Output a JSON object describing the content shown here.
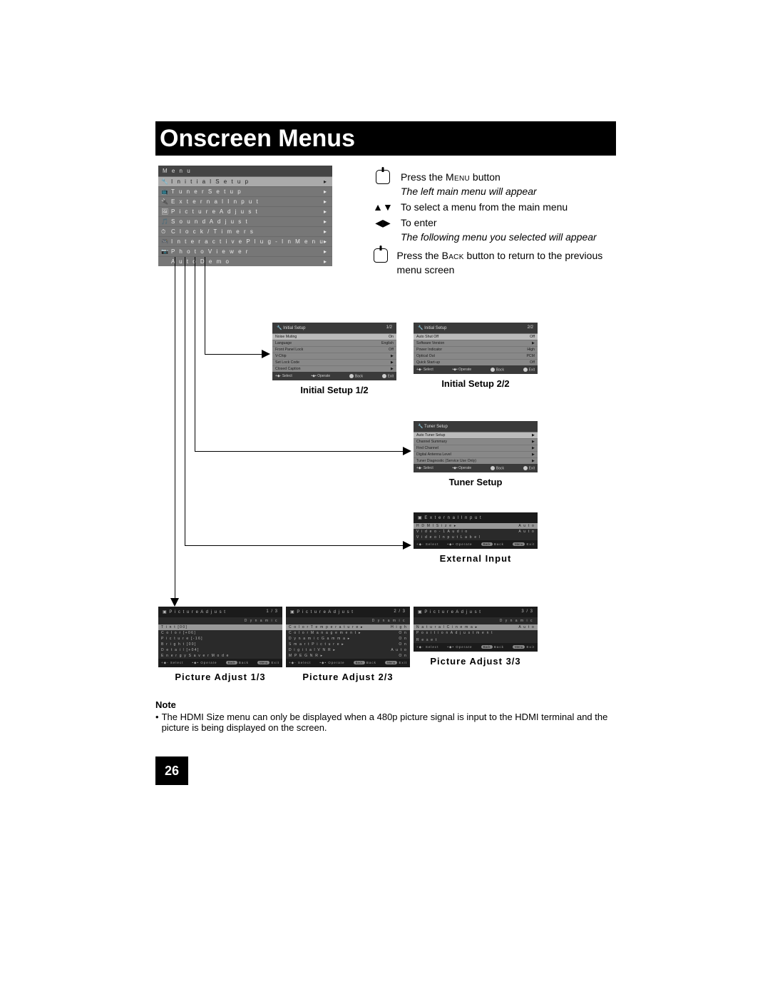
{
  "title": "Onscreen Menus",
  "page_number": "26",
  "main_menu": {
    "title": "M e n u",
    "items": [
      {
        "label": "I n i t i a l   S e t u p",
        "icon": "🔧"
      },
      {
        "label": "T u n e r   S e t u p",
        "icon": "📺"
      },
      {
        "label": "E x t e r n a l   I n p u t",
        "icon": "🔌"
      },
      {
        "label": "P i c t u r e   A d j u s t",
        "icon": "🖼"
      },
      {
        "label": "S o u n d   A d j u s t",
        "icon": "🎵"
      },
      {
        "label": "C l o c k / T i m e r s",
        "icon": "⏱"
      },
      {
        "label": "I n t e r a c t i v e   P l u g - I n   M e n u",
        "icon": "🎮"
      },
      {
        "label": "P h o t o   V i e w e r",
        "icon": "📷"
      },
      {
        "label": "A u t o   D e m o",
        "icon": ""
      }
    ]
  },
  "instructions": {
    "line1": "Press the ",
    "line1b": "Menu",
    "line1c": " button",
    "italic1": "The left main menu will appear",
    "line2": "To select a menu from the main menu",
    "line3": "To enter",
    "italic2": "The following menu you selected will appear",
    "line4a": "Press the ",
    "line4b": "Back",
    "line4c": " button to return to the previous menu screen"
  },
  "sub": {
    "is1": {
      "title": "Initial Setup",
      "page": "1/2",
      "rows": [
        {
          "l": "Noise Muting",
          "r": "On",
          "sel": true
        },
        {
          "l": "Language",
          "r": "English"
        },
        {
          "l": "Front Panel Lock",
          "r": "Off"
        },
        {
          "l": "V-Chip",
          "r": "▶"
        },
        {
          "l": "Set Lock Code",
          "r": "▶"
        },
        {
          "l": "Closed Caption",
          "r": "▶"
        }
      ],
      "caption": "Initial Setup 1/2"
    },
    "is2": {
      "title": "Initial Setup",
      "page": "2/2",
      "rows": [
        {
          "l": "Auto Shut Off",
          "r": "Off",
          "sel": true
        },
        {
          "l": "Software Version",
          "r": "▶"
        },
        {
          "l": "Power Indicator",
          "r": "High"
        },
        {
          "l": "Optical Out",
          "r": "PCM"
        },
        {
          "l": "Quick Start-up",
          "r": "Off"
        }
      ],
      "caption": "Initial Setup 2/2"
    },
    "tuner": {
      "title": "Tuner Setup",
      "page": "",
      "rows": [
        {
          "l": "Auto Tuner Setup",
          "r": "▶",
          "sel": true
        },
        {
          "l": "Channel Summary",
          "r": "▶"
        },
        {
          "l": "Find Channel",
          "r": "▶"
        },
        {
          "l": "Digital Antenna Level",
          "r": "▶"
        },
        {
          "l": "Tuner Diagnostic (Service Use Only)",
          "r": "▶"
        }
      ],
      "caption": "Tuner Setup"
    },
    "ext": {
      "title": "E x t e r n a l   I n p u t",
      "page": "",
      "rows": [
        {
          "l": "H D M I   S i z e ▸",
          "r": "A u t o",
          "sel": true
        },
        {
          "l": "V i d e o - 1   A u d i o",
          "r": "A u t o"
        },
        {
          "l": "V i d e o   I n p u t   L a b e l",
          "r": ""
        }
      ],
      "caption": "External Input"
    },
    "pa1": {
      "title": "P i c t u r e   A d j u s t",
      "page": "1 / 3",
      "mode": "D y n a m i c",
      "rows": [
        {
          "l": "T i n t",
          "v": "[ 0 0 ]",
          "r": "",
          "sel": true
        },
        {
          "l": "C o l o r",
          "v": "[ + 0 6 ]",
          "r": ""
        },
        {
          "l": "P i c t u r e",
          "v": "[ - 1 6 ]",
          "r": ""
        },
        {
          "l": "B r i g h t",
          "v": "[ 0 0 ]",
          "r": ""
        },
        {
          "l": "D e t a i l",
          "v": "[ + 0 4 ]",
          "r": ""
        },
        {
          "l": "E n e r g y  S a v e r  M o d e",
          "v": "",
          "r": ""
        }
      ],
      "caption": "Picture Adjust 1/3"
    },
    "pa2": {
      "title": "P i c t u r e   A d j u s t",
      "page": "2 / 3",
      "mode": "D y n a m i c",
      "rows": [
        {
          "l": "C o l o r  T e m p e r a t u r e ▸",
          "r": "H i g h",
          "sel": true
        },
        {
          "l": "C o l o r  M a n a g e m e n t ▸",
          "r": "O n"
        },
        {
          "l": "D y n a m i c  G a m m a ▸",
          "r": "O n"
        },
        {
          "l": "S m a r t  P i c t u r e ▸",
          "r": "O n"
        },
        {
          "l": "D i g i t a l  V N R ▸",
          "r": "A u t o"
        },
        {
          "l": "M P E G  N R ▸",
          "r": "O n"
        }
      ],
      "caption": "Picture Adjust 2/3"
    },
    "pa3": {
      "title": "P i c t u r e   A d j u s t",
      "page": "3 / 3",
      "mode": "D y n a m i c",
      "rows": [
        {
          "l": "N a t u r a l  C i n e m a ▸",
          "r": "A u t o",
          "sel": true
        },
        {
          "l": "P o s i t i o n  A d j u s t m e n t",
          "r": ""
        },
        {
          "l": "",
          "r": ""
        },
        {
          "l": "R e s e t",
          "r": ""
        }
      ],
      "caption": "Picture Adjust 3/3"
    }
  },
  "footer_labels": {
    "sel": "Select",
    "op": "Operate",
    "back": "Back",
    "exit": "Exit",
    "menu": "Menu"
  },
  "note_title": "Note",
  "note_body": "The HDMI Size menu can only be displayed when a 480p picture signal is input to the HDMI terminal and the picture is being displayed on the screen."
}
